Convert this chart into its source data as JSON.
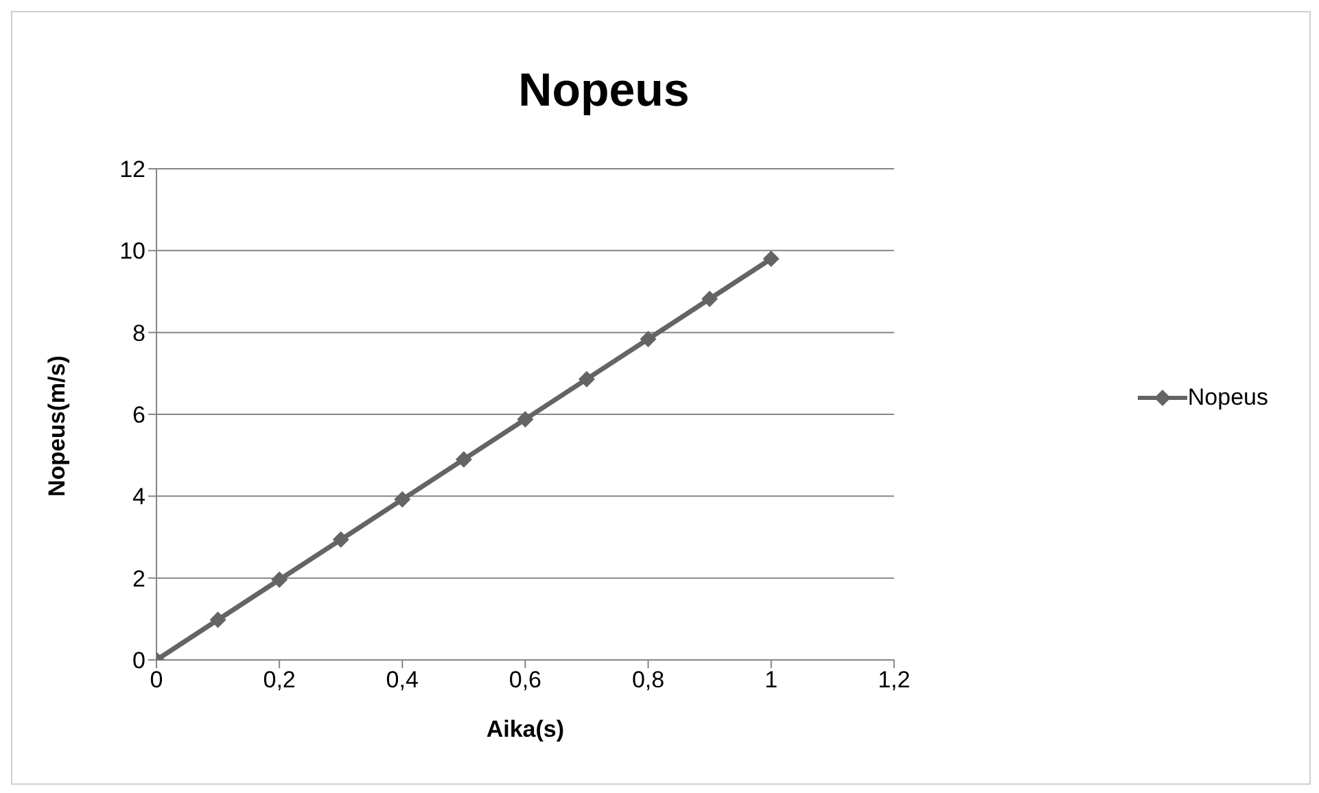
{
  "chart_data": {
    "type": "line",
    "title": "Nopeus",
    "xlabel": "Aika(s)",
    "ylabel": "Nopeus(m/s)",
    "x": [
      0,
      0.1,
      0.2,
      0.3,
      0.4,
      0.5,
      0.6,
      0.7,
      0.8,
      0.9,
      1
    ],
    "series": [
      {
        "name": "Nopeus",
        "color": "#646464",
        "values": [
          0,
          0.98,
          1.96,
          2.94,
          3.92,
          4.9,
          5.88,
          6.86,
          7.84,
          8.82,
          9.8
        ]
      }
    ],
    "xlim": [
      0,
      1.2
    ],
    "xticks": [
      0,
      {
        "value": 0.2,
        "label": "0,2"
      },
      {
        "value": 0.4,
        "label": "0,4"
      },
      {
        "value": 0.6,
        "label": "0,6"
      },
      {
        "value": 0.8,
        "label": "0,8"
      },
      1,
      {
        "value": 1.2,
        "label": "1,2"
      }
    ],
    "ylim": [
      0,
      12
    ],
    "yticks": [
      0,
      2,
      4,
      6,
      8,
      10,
      12
    ],
    "grid": "y",
    "legend": "right",
    "marker": "diamond",
    "line_style": "solid"
  }
}
